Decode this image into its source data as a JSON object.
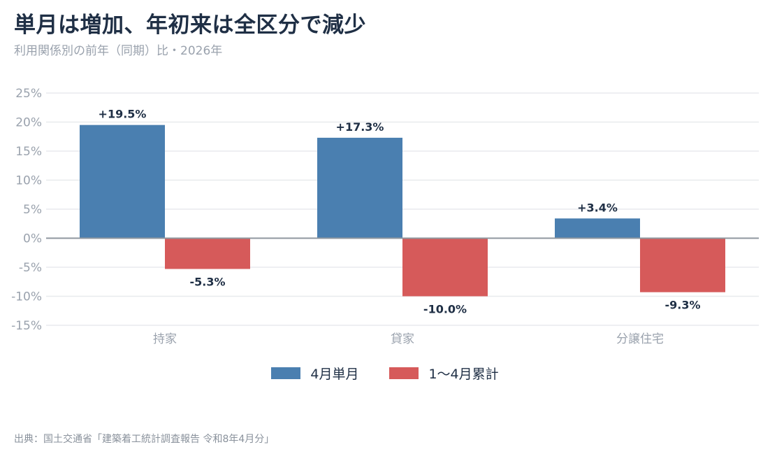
{
  "title": "単月は増加、年初来は全区分で減少",
  "subtitle": "利用関係別の前年（同期）比・2026年",
  "source": "出典：国土交通省「建築着工統計調査報告 令和8年4月分」",
  "colors": {
    "series1": "#4a7fb0",
    "series2": "#d65a5a",
    "grid": "#e8eaed",
    "zero": "#8f979f"
  },
  "chart_data": {
    "type": "bar",
    "categories": [
      "持家",
      "貸家",
      "分譲住宅"
    ],
    "series": [
      {
        "name": "4月単月",
        "values": [
          19.5,
          17.3,
          3.4
        ],
        "labels": [
          "+19.5%",
          "+17.3%",
          "+3.4%"
        ]
      },
      {
        "name": "1〜4月累計",
        "values": [
          -5.3,
          -10.0,
          -9.3
        ],
        "labels": [
          "-5.3%",
          "-10.0%",
          "-9.3%"
        ]
      }
    ],
    "yticks": [
      25,
      20,
      15,
      10,
      5,
      0,
      -5,
      -10,
      -15
    ],
    "ytick_labels": [
      "25%",
      "20%",
      "15%",
      "10%",
      "5%",
      "0%",
      "-5%",
      "-10%",
      "-15%"
    ],
    "ylim": [
      -15,
      25
    ],
    "grid": true,
    "legend": "bottom"
  }
}
